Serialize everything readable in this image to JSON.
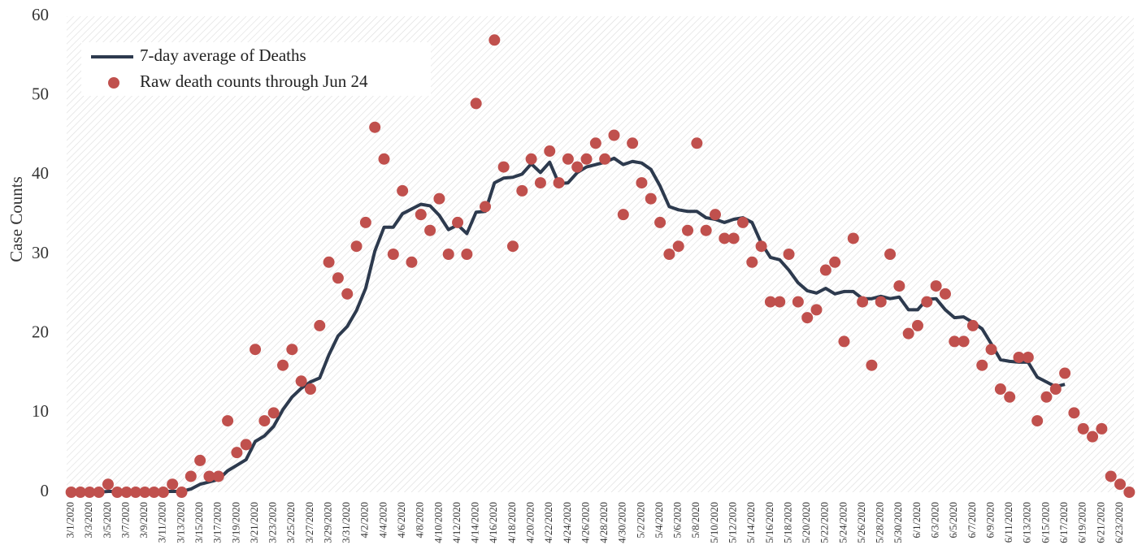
{
  "chart_data": {
    "type": "line",
    "ylabel": "Case Counts",
    "ylim": [
      0,
      60
    ],
    "yticks": [
      0,
      10,
      20,
      30,
      40,
      50,
      60
    ],
    "legend": "upper left",
    "categories": [
      "3/1/2020",
      null,
      "3/3/2020",
      null,
      "3/5/2020",
      null,
      "3/7/2020",
      null,
      "3/9/2020",
      null,
      "3/11/2020",
      null,
      "3/13/2020",
      null,
      "3/15/2020",
      null,
      "3/17/2020",
      null,
      "3/19/2020",
      null,
      "3/21/2020",
      null,
      "3/23/2020",
      null,
      "3/25/2020",
      null,
      "3/27/2020",
      null,
      "3/29/2020",
      null,
      "3/31/2020",
      null,
      "4/2/2020",
      null,
      "4/4/2020",
      null,
      "4/6/2020",
      null,
      "4/8/2020",
      null,
      "4/10/2020",
      null,
      "4/12/2020",
      null,
      "4/14/2020",
      null,
      "4/16/2020",
      null,
      "4/18/2020",
      null,
      "4/20/2020",
      null,
      "4/22/2020",
      null,
      "4/24/2020",
      null,
      "4/26/2020",
      null,
      "4/28/2020",
      null,
      "4/30/2020",
      null,
      "5/2/2020",
      null,
      "5/4/2020",
      null,
      "5/6/2020",
      null,
      "5/8/2020",
      null,
      "5/10/2020",
      null,
      "5/12/2020",
      null,
      "5/14/2020",
      null,
      "5/16/2020",
      null,
      "5/18/2020",
      null,
      "5/20/2020",
      null,
      "5/22/2020",
      null,
      "5/24/2020",
      null,
      "5/26/2020",
      null,
      "5/28/2020",
      null,
      "5/30/2020",
      null,
      "6/1/2020",
      null,
      "6/3/2020",
      null,
      "6/5/2020",
      null,
      "6/7/2020",
      null,
      "6/9/2020",
      null,
      "6/11/2020",
      null,
      "6/13/2020",
      null,
      "6/15/2020",
      null,
      "6/17/2020",
      null,
      "6/19/2020",
      null,
      "6/21/2020",
      null,
      "6/23/2020",
      null
    ],
    "series": [
      {
        "name": "7-day average of Deaths",
        "type": "line",
        "color": "#2d3a4e",
        "values": [
          0,
          0,
          0,
          0,
          0.1,
          0.1,
          0.1,
          0.1,
          0.1,
          0.1,
          0.1,
          0.1,
          0.1,
          0.4,
          1,
          1.3,
          1.6,
          2.7,
          3.4,
          4.1,
          6.4,
          7.1,
          8.3,
          10.4,
          12,
          13.1,
          13.9,
          14.4,
          17.3,
          19.7,
          20.9,
          22.9,
          25.7,
          30.4,
          33.4,
          33.4,
          35.1,
          35.7,
          36.3,
          36.1,
          34.9,
          33.1,
          33.7,
          32.6,
          35.3,
          35.4,
          39,
          39.6,
          39.7,
          40.1,
          41.4,
          40.3,
          41.6,
          38.9,
          39,
          40.3,
          41,
          41.3,
          41.6,
          42.1,
          41.3,
          41.7,
          41.5,
          40.7,
          38.6,
          36,
          35.6,
          35.4,
          35.4,
          34.6,
          34.4,
          34,
          34.4,
          34.6,
          34,
          31.4,
          29.6,
          29.3,
          28,
          26.4,
          25.4,
          25.1,
          25.7,
          25,
          25.3,
          25.3,
          24.4,
          24.4,
          24.7,
          24.4,
          24.6,
          23,
          23,
          24.3,
          24.4,
          23,
          22,
          22.1,
          21.4,
          20.6,
          18.7,
          16.7,
          16.5,
          16.4,
          16.4,
          14.5,
          13.9,
          13.3,
          13.6,
          null,
          null,
          null,
          null,
          null,
          null,
          null
        ]
      },
      {
        "name": "Raw death counts through Jun 24",
        "type": "scatter",
        "color": "#c0504d",
        "values": [
          0,
          0,
          0,
          0,
          1,
          0,
          0,
          0,
          0,
          0,
          0,
          1,
          0,
          2,
          4,
          2,
          2,
          9,
          5,
          6,
          18,
          9,
          10,
          16,
          18,
          14,
          13,
          21,
          29,
          27,
          25,
          31,
          34,
          46,
          42,
          30,
          38,
          29,
          35,
          33,
          37,
          30,
          34,
          30,
          49,
          36,
          57,
          41,
          31,
          38,
          42,
          39,
          43,
          39,
          42,
          41,
          42,
          44,
          42,
          45,
          35,
          44,
          39,
          37,
          34,
          30,
          31,
          33,
          44,
          33,
          35,
          32,
          32,
          34,
          29,
          31,
          24,
          24,
          30,
          24,
          22,
          23,
          28,
          29,
          19,
          32,
          24,
          16,
          24,
          30,
          26,
          20,
          21,
          24,
          26,
          25,
          19,
          19,
          21,
          16,
          18,
          13,
          12,
          17,
          17,
          9,
          12,
          13,
          15,
          10,
          8,
          7,
          8,
          2,
          1,
          0
        ]
      }
    ]
  }
}
